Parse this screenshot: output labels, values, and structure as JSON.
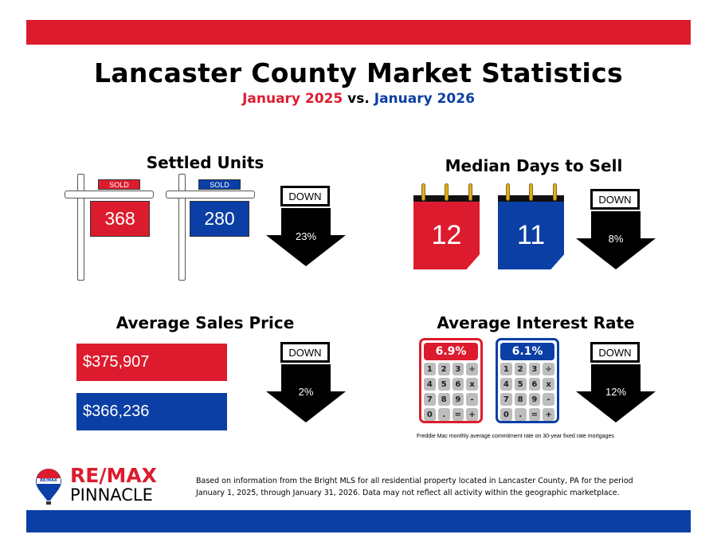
{
  "header": {
    "title": "Lancaster County Market Statistics",
    "period_a": "January 2025",
    "vs": "vs.",
    "period_b": "January 2026"
  },
  "colors": {
    "red": "#dc1c2e",
    "blue": "#0b3fa5"
  },
  "settled_units": {
    "title": "Settled Units",
    "sold_label": "SOLD",
    "value_a": "368",
    "value_b": "280",
    "direction": "DOWN",
    "change": "23%"
  },
  "median_days": {
    "title": "Median Days to Sell",
    "value_a": "12",
    "value_b": "11",
    "direction": "DOWN",
    "change": "8%"
  },
  "avg_price": {
    "title": "Average Sales Price",
    "value_a": "$375,907",
    "value_b": "$366,236",
    "direction": "DOWN",
    "change": "2%"
  },
  "interest_rate": {
    "title": "Average Interest Rate",
    "value_a": "6.9%",
    "value_b": "6.1%",
    "direction": "DOWN",
    "change": "12%",
    "keys": [
      "1",
      "2",
      "3",
      "÷",
      "4",
      "5",
      "6",
      "x",
      "7",
      "8",
      "9",
      "-",
      "0",
      ".",
      "=",
      "+"
    ],
    "note": "Freddie Mac monthly average commitment rate on 30-year fixed rate mortgages"
  },
  "footer": {
    "logo_top": "RE/MAX",
    "logo_bottom": "PINNACLE",
    "balloon_text": "RE/MAX",
    "disclaimer_1": "Based on information from the Bright MLS for all residential property located in Lancaster County, PA for the period",
    "disclaimer_2": "January 1, 2025, through January 31, 2026.  Data may not reflect all activity within the geographic marketplace."
  }
}
